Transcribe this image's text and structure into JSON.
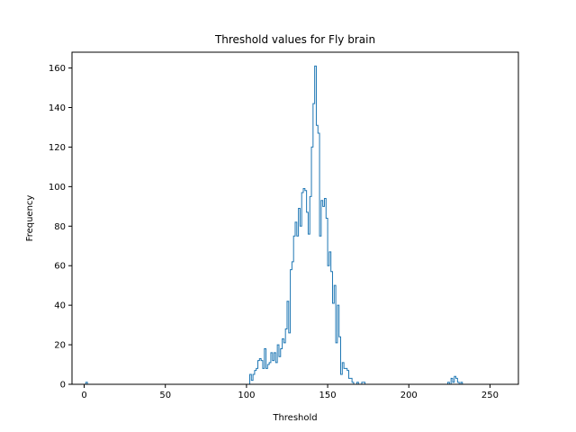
{
  "chart_data": {
    "type": "histogram",
    "title": "Threshold values for Fly brain",
    "xlabel": "Threshold",
    "ylabel": "Frequency",
    "xlim": [
      -7.5,
      267.5
    ],
    "ylim": [
      0,
      168
    ],
    "x_ticks": [
      0,
      50,
      100,
      150,
      200,
      250
    ],
    "y_ticks": [
      0,
      20,
      40,
      60,
      80,
      100,
      120,
      140,
      160
    ],
    "grid": false,
    "color": "#1f77b4",
    "bin_width": 1,
    "counts": [
      [
        0,
        0
      ],
      [
        1,
        1
      ],
      [
        2,
        0
      ],
      [
        101,
        0
      ],
      [
        102,
        5
      ],
      [
        103,
        2
      ],
      [
        104,
        5
      ],
      [
        105,
        7
      ],
      [
        106,
        8
      ],
      [
        107,
        12
      ],
      [
        108,
        13
      ],
      [
        109,
        12
      ],
      [
        110,
        8
      ],
      [
        111,
        18
      ],
      [
        112,
        8
      ],
      [
        113,
        10
      ],
      [
        114,
        11
      ],
      [
        115,
        16
      ],
      [
        116,
        12
      ],
      [
        117,
        16
      ],
      [
        118,
        11
      ],
      [
        119,
        20
      ],
      [
        120,
        14
      ],
      [
        121,
        18
      ],
      [
        122,
        23
      ],
      [
        123,
        21
      ],
      [
        124,
        28
      ],
      [
        125,
        42
      ],
      [
        126,
        26
      ],
      [
        127,
        58
      ],
      [
        128,
        62
      ],
      [
        129,
        75
      ],
      [
        130,
        82
      ],
      [
        131,
        75
      ],
      [
        132,
        89
      ],
      [
        133,
        80
      ],
      [
        134,
        97
      ],
      [
        135,
        99
      ],
      [
        136,
        98
      ],
      [
        137,
        87
      ],
      [
        138,
        76
      ],
      [
        139,
        95
      ],
      [
        140,
        120
      ],
      [
        141,
        142
      ],
      [
        142,
        161
      ],
      [
        143,
        131
      ],
      [
        144,
        127
      ],
      [
        145,
        75
      ],
      [
        146,
        93
      ],
      [
        147,
        90
      ],
      [
        148,
        94
      ],
      [
        149,
        84
      ],
      [
        150,
        60
      ],
      [
        151,
        67
      ],
      [
        152,
        57
      ],
      [
        153,
        41
      ],
      [
        154,
        50
      ],
      [
        155,
        21
      ],
      [
        156,
        40
      ],
      [
        157,
        24
      ],
      [
        158,
        5
      ],
      [
        159,
        11
      ],
      [
        160,
        8
      ],
      [
        161,
        8
      ],
      [
        162,
        7
      ],
      [
        163,
        3
      ],
      [
        164,
        3
      ],
      [
        165,
        1
      ],
      [
        166,
        0
      ],
      [
        167,
        0
      ],
      [
        168,
        1
      ],
      [
        169,
        0
      ],
      [
        170,
        0
      ],
      [
        171,
        1
      ],
      [
        172,
        1
      ],
      [
        173,
        0
      ],
      [
        223,
        0
      ],
      [
        224,
        1
      ],
      [
        225,
        0
      ],
      [
        226,
        3
      ],
      [
        227,
        1
      ],
      [
        228,
        4
      ],
      [
        229,
        3
      ],
      [
        230,
        1
      ],
      [
        231,
        0
      ],
      [
        232,
        1
      ],
      [
        233,
        0
      ]
    ]
  }
}
